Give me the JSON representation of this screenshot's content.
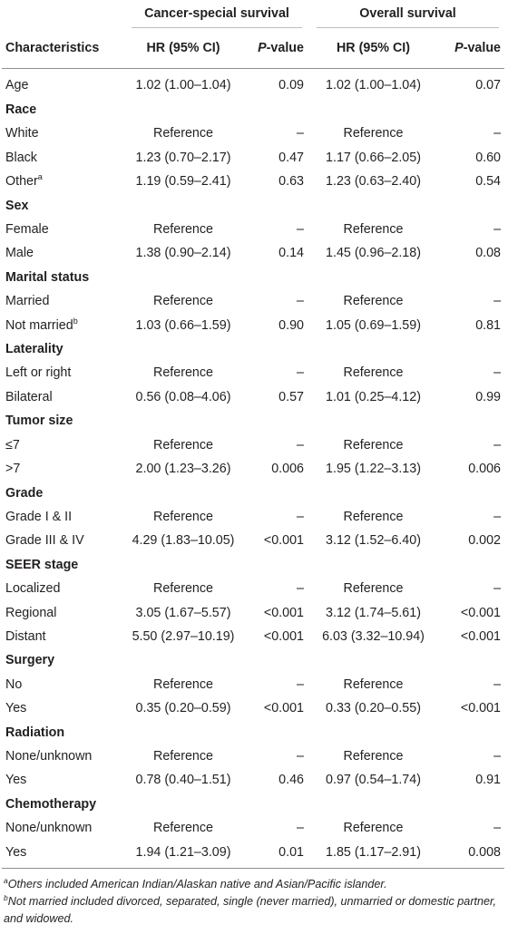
{
  "groups": {
    "css": "Cancer-special survival",
    "os": "Overall survival"
  },
  "headers": {
    "characteristics": "Characteristics",
    "hr1": "HR (95% CI)",
    "p1_italic": "P",
    "p1_rest": "-value",
    "hr2": "HR (95% CI)",
    "p2_italic": "P",
    "p2_rest": "-value"
  },
  "rows": [
    {
      "label": "Age",
      "hr1": "1.02 (1.00–1.04)",
      "p1": "0.09",
      "hr2": "1.02 (1.00–1.04)",
      "p2": "0.07"
    },
    {
      "category": "Race"
    },
    {
      "label": "White",
      "hr1": "Reference",
      "p1": "–",
      "hr2": "Reference",
      "p2": "–"
    },
    {
      "label": "Black",
      "hr1": "1.23 (0.70–2.17)",
      "p1": "0.47",
      "hr2": "1.17 (0.66–2.05)",
      "p2": "0.60"
    },
    {
      "label": "Other",
      "sup": "a",
      "hr1": "1.19 (0.59–2.41)",
      "p1": "0.63",
      "hr2": "1.23 (0.63–2.40)",
      "p2": "0.54"
    },
    {
      "category": "Sex"
    },
    {
      "label": "Female",
      "hr1": "Reference",
      "p1": "–",
      "hr2": "Reference",
      "p2": "–"
    },
    {
      "label": "Male",
      "hr1": "1.38 (0.90–2.14)",
      "p1": "0.14",
      "hr2": "1.45 (0.96–2.18)",
      "p2": "0.08"
    },
    {
      "category": "Marital status"
    },
    {
      "label": "Married",
      "hr1": "Reference",
      "p1": "–",
      "hr2": "Reference",
      "p2": "–"
    },
    {
      "label": "Not married",
      "sup": "b",
      "hr1": "1.03 (0.66–1.59)",
      "p1": "0.90",
      "hr2": "1.05 (0.69–1.59)",
      "p2": "0.81"
    },
    {
      "category": "Laterality"
    },
    {
      "label": "Left or right",
      "hr1": "Reference",
      "p1": "–",
      "hr2": "Reference",
      "p2": "–"
    },
    {
      "label": "Bilateral",
      "hr1": "0.56 (0.08–4.06)",
      "p1": "0.57",
      "hr2": "1.01 (0.25–4.12)",
      "p2": "0.99"
    },
    {
      "category": "Tumor size"
    },
    {
      "label": "≤7",
      "hr1": "Reference",
      "p1": "–",
      "hr2": "Reference",
      "p2": "–"
    },
    {
      "label": ">7",
      "hr1": "2.00 (1.23–3.26)",
      "p1": "0.006",
      "hr2": "1.95 (1.22–3.13)",
      "p2": "0.006"
    },
    {
      "category": "Grade"
    },
    {
      "label": "Grade I & II",
      "hr1": "Reference",
      "p1": "–",
      "hr2": "Reference",
      "p2": "–"
    },
    {
      "label": "Grade III & IV",
      "hr1": "4.29 (1.83–10.05)",
      "p1": "<0.001",
      "hr2": "3.12 (1.52–6.40)",
      "p2": "0.002"
    },
    {
      "category": "SEER stage"
    },
    {
      "label": "Localized",
      "hr1": "Reference",
      "p1": "–",
      "hr2": "Reference",
      "p2": "–"
    },
    {
      "label": "Regional",
      "hr1": "3.05 (1.67–5.57)",
      "p1": "<0.001",
      "hr2": "3.12 (1.74–5.61)",
      "p2": "<0.001"
    },
    {
      "label": "Distant",
      "hr1": "5.50 (2.97–10.19)",
      "p1": "<0.001",
      "hr2": "6.03 (3.32–10.94)",
      "p2": "<0.001"
    },
    {
      "category": "Surgery"
    },
    {
      "label": "No",
      "hr1": "Reference",
      "p1": "–",
      "hr2": "Reference",
      "p2": "–"
    },
    {
      "label": "Yes",
      "hr1": "0.35 (0.20–0.59)",
      "p1": "<0.001",
      "hr2": "0.33 (0.20–0.55)",
      "p2": "<0.001"
    },
    {
      "category": "Radiation"
    },
    {
      "label": "None/unknown",
      "hr1": "Reference",
      "p1": "–",
      "hr2": "Reference",
      "p2": "–"
    },
    {
      "label": "Yes",
      "hr1": "0.78 (0.40–1.51)",
      "p1": "0.46",
      "hr2": "0.97 (0.54–1.74)",
      "p2": "0.91"
    },
    {
      "category": "Chemotherapy"
    },
    {
      "label": "None/unknown",
      "hr1": "Reference",
      "p1": "–",
      "hr2": "Reference",
      "p2": "–"
    },
    {
      "label": "Yes",
      "hr1": "1.94 (1.21–3.09)",
      "p1": "0.01",
      "hr2": "1.85 (1.17–2.91)",
      "p2": "0.008"
    }
  ],
  "footnotes": [
    {
      "mark": "a",
      "text": "Others included American Indian/Alaskan native and Asian/Pacific islander."
    },
    {
      "mark": "b",
      "text": "Not married included divorced, separated, single (never married), unmarried or domestic partner, and widowed."
    }
  ]
}
